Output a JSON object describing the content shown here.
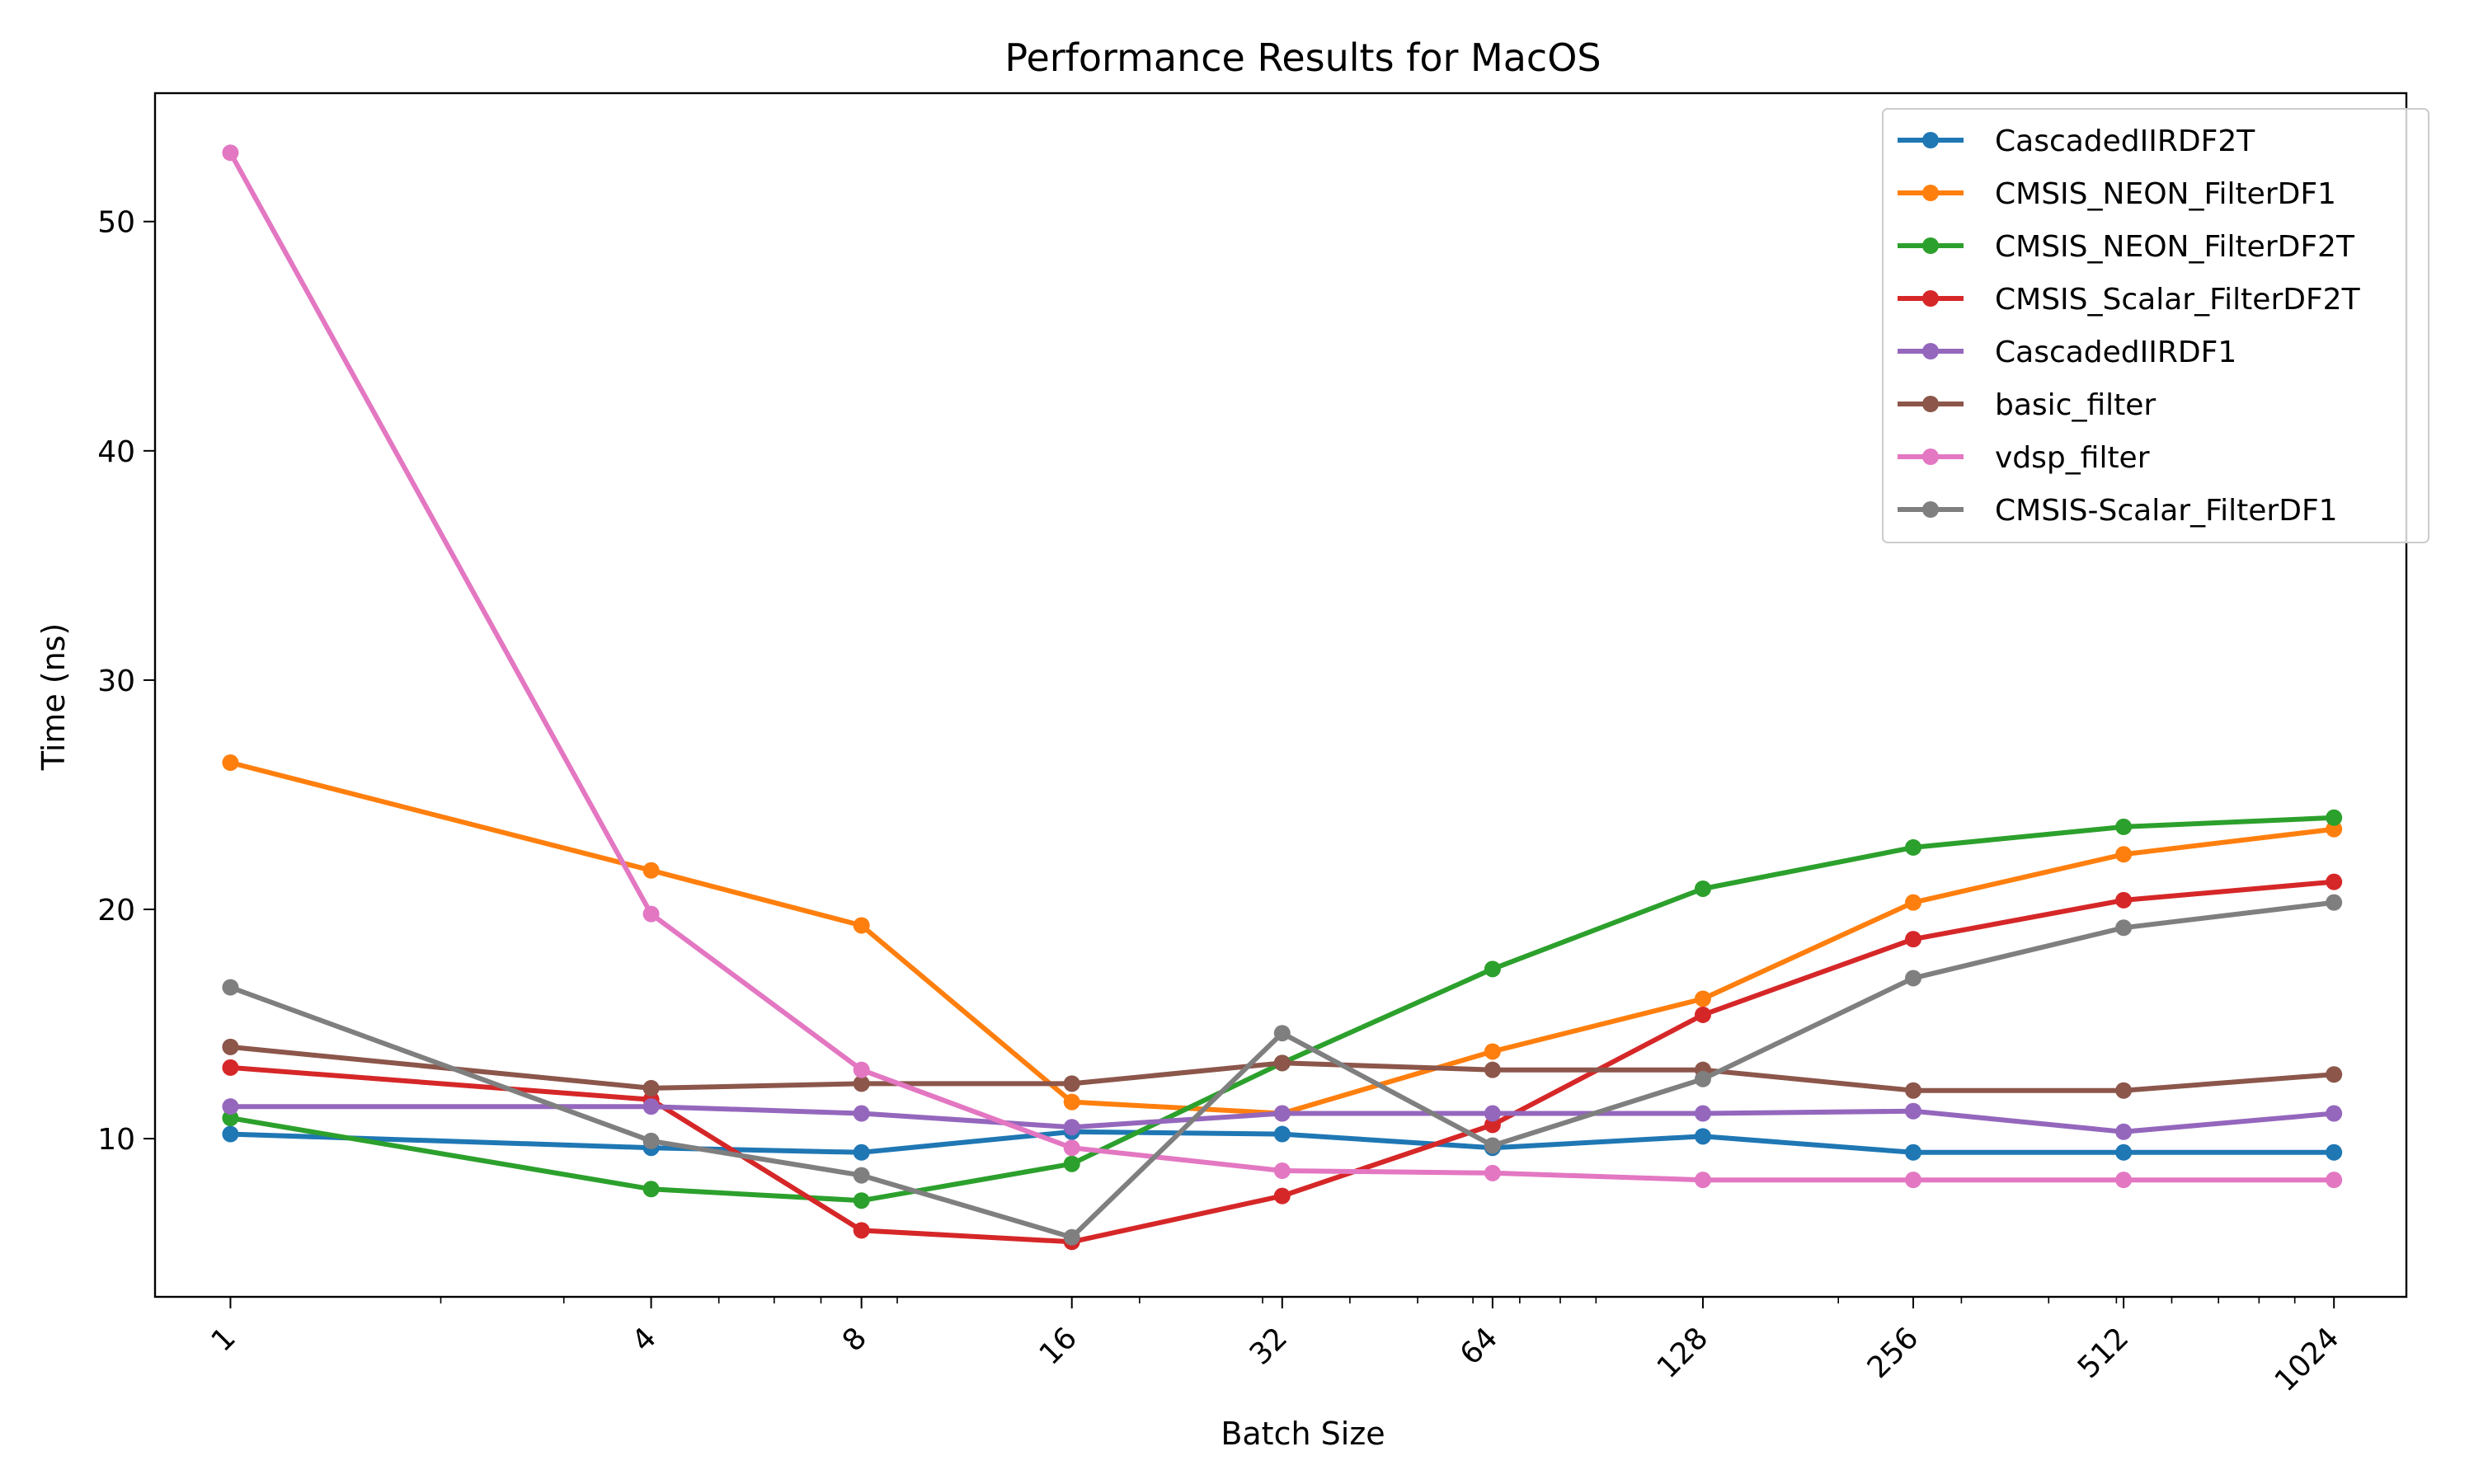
{
  "chart_data": {
    "type": "line",
    "title": "Performance Results for MacOS",
    "xlabel": "Batch Size",
    "ylabel": "Time (ns)",
    "x_scale": "log2",
    "x": [
      1,
      4,
      8,
      16,
      32,
      64,
      128,
      256,
      512,
      1024
    ],
    "x_tick_labels": [
      "1",
      "4",
      "8",
      "16",
      "32",
      "64",
      "128",
      "256",
      "512",
      "1024"
    ],
    "xlim": [
      0.78,
      1300
    ],
    "ylim": [
      3.1,
      55.6
    ],
    "y_ticks": [
      10,
      20,
      30,
      40,
      50
    ],
    "y_tick_labels": [
      "10",
      "20",
      "30",
      "40",
      "50"
    ],
    "grid": false,
    "legend_position": "top-right",
    "series": [
      {
        "name": "CascadedIIRDF2T",
        "color": "#1f77b4",
        "values": [
          10.2,
          9.6,
          9.4,
          10.3,
          10.2,
          9.6,
          10.1,
          9.4,
          9.4,
          9.4
        ]
      },
      {
        "name": "CMSIS_NEON_FilterDF1",
        "color": "#ff7f0e",
        "values": [
          26.4,
          21.7,
          19.3,
          11.6,
          11.1,
          13.8,
          16.1,
          20.3,
          22.4,
          23.5
        ]
      },
      {
        "name": "CMSIS_NEON_FilterDF2T",
        "color": "#2ca02c",
        "values": [
          10.9,
          7.8,
          7.3,
          8.9,
          13.3,
          17.4,
          20.9,
          22.7,
          23.6,
          24.0
        ]
      },
      {
        "name": "CMSIS_Scalar_FilterDF2T",
        "color": "#d62728",
        "values": [
          13.1,
          11.7,
          6.0,
          5.5,
          7.5,
          10.6,
          15.4,
          18.7,
          20.4,
          21.2
        ]
      },
      {
        "name": "CascadedIIRDF1",
        "color": "#9467bd",
        "values": [
          11.4,
          11.4,
          11.1,
          10.5,
          11.1,
          11.1,
          11.1,
          11.2,
          10.3,
          11.1
        ]
      },
      {
        "name": "basic_filter",
        "color": "#8c564b",
        "values": [
          14.0,
          12.2,
          12.4,
          12.4,
          13.3,
          13.0,
          13.0,
          12.1,
          12.1,
          12.8
        ]
      },
      {
        "name": "vdsp_filter",
        "color": "#e377c2",
        "values": [
          53.0,
          19.8,
          13.0,
          9.6,
          8.6,
          8.5,
          8.2,
          8.2,
          8.2,
          8.2
        ]
      },
      {
        "name": "CMSIS-Scalar_FilterDF1",
        "color": "#7f7f7f",
        "values": [
          16.6,
          9.9,
          8.4,
          5.7,
          14.6,
          9.7,
          12.6,
          17.0,
          19.2,
          20.3
        ]
      }
    ]
  }
}
